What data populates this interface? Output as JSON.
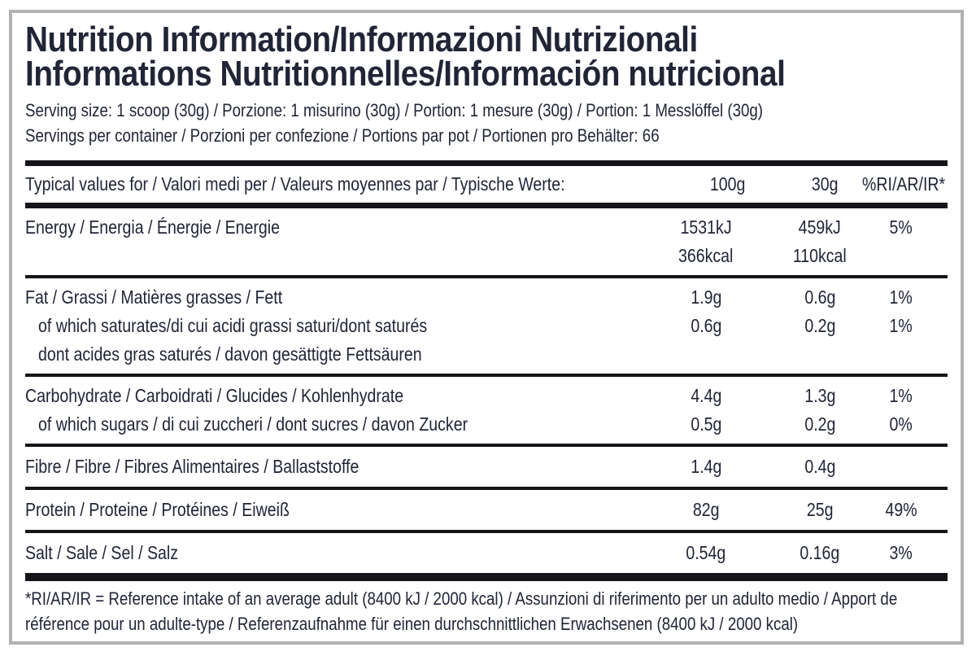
{
  "label": {
    "title_line1": "Nutrition Information/Informazioni Nutrizionali",
    "title_line2": "Informations Nutritionnelles/Información nutricional",
    "serving_size": "Serving size: 1 scoop (30g) / Porzione: 1 misurino (30g) / Portion: 1 mesure (30g) / Portion: 1 Messlöffel (30g)",
    "servings_per_container": "Servings per container / Porzioni per confezione / Portions par pot / Portionen pro Behälter: 66",
    "header": {
      "label": "Typical values for / Valori medi per / Valeurs moyennes par / Typische Werte:",
      "col1": "100g",
      "col2": "30g",
      "col3": "%RI/AR/IR*"
    },
    "rows": [
      {
        "name": "energy",
        "lines": [
          {
            "label": "Energy / Energia / Énergie / Energie",
            "v100": "1531kJ",
            "v30": "459kJ",
            "ri": "5%"
          },
          {
            "label": "",
            "v100": "366kcal",
            "v30": "110kcal",
            "ri": ""
          }
        ]
      },
      {
        "name": "fat",
        "lines": [
          {
            "label": "Fat / Grassi / Matières grasses / Fett",
            "v100": "1.9g",
            "v30": "0.6g",
            "ri": "1%"
          },
          {
            "label": "of which saturates/di cui acidi grassi saturi/dont saturés",
            "v100": "0.6g",
            "v30": "0.2g",
            "ri": "1%"
          },
          {
            "label": "dont acides gras saturés / davon gesättigte Fettsäuren",
            "v100": "",
            "v30": "",
            "ri": ""
          }
        ]
      },
      {
        "name": "carbohydrate",
        "lines": [
          {
            "label": "Carbohydrate / Carboidrati / Glucides / Kohlenhydrate",
            "v100": "4.4g",
            "v30": "1.3g",
            "ri": "1%"
          },
          {
            "label": "of which sugars / di cui zuccheri / dont sucres / davon Zucker",
            "v100": "0.5g",
            "v30": "0.2g",
            "ri": "0%"
          }
        ]
      },
      {
        "name": "fibre",
        "lines": [
          {
            "label": "Fibre / Fibre / Fibres Alimentaires / Ballaststoffe",
            "v100": "1.4g",
            "v30": "0.4g",
            "ri": ""
          }
        ]
      },
      {
        "name": "protein",
        "lines": [
          {
            "label": "Protein / Proteine / Protéines / Eiweiß",
            "v100": "82g",
            "v30": "25g",
            "ri": "49%"
          }
        ]
      },
      {
        "name": "salt",
        "lines": [
          {
            "label": "Salt / Sale / Sel / Salz",
            "v100": "0.54g",
            "v30": "0.16g",
            "ri": "3%"
          }
        ]
      }
    ],
    "footnote": "*RI/AR/IR = Reference intake of an average adult (8400 kJ / 2000 kcal) / Assunzioni di riferimento per un adulto medio / Apport de référence pour un adulte-type / Referenzaufnahme für einen durchschnittlichen Erwachsenen (8400 kJ / 2000 kcal)",
    "colors": {
      "text": "#212536",
      "rule": "#141419",
      "border": "#b2b2b2",
      "background": "#ffffff"
    }
  }
}
